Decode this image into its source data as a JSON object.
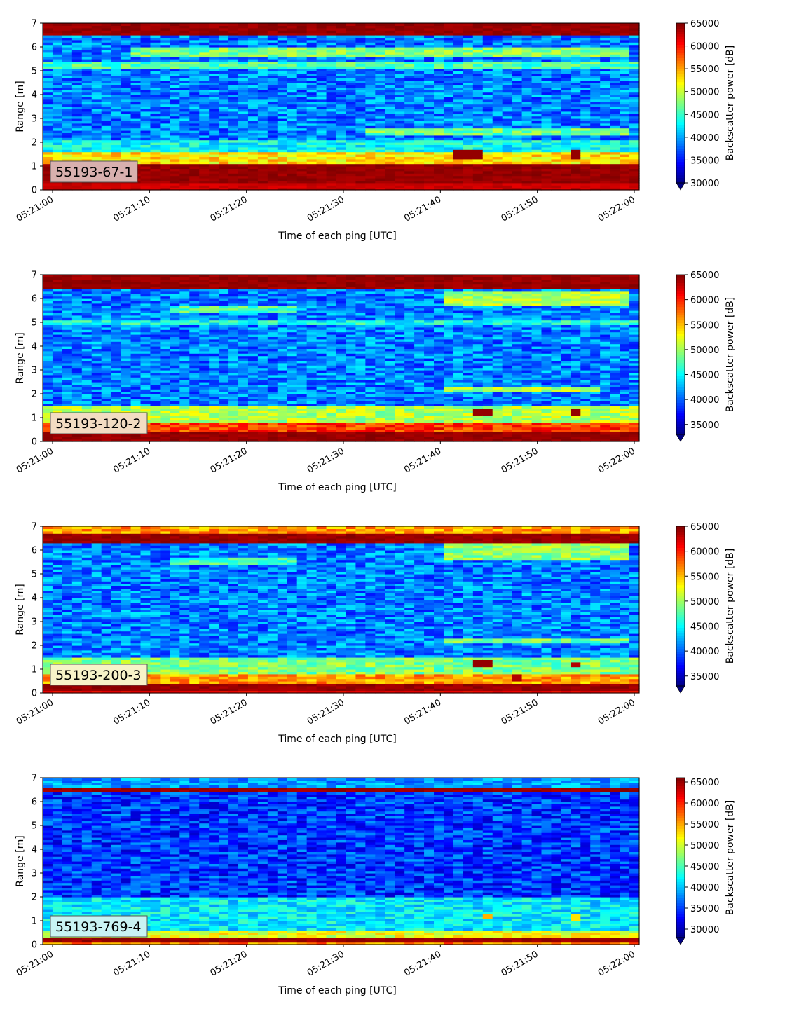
{
  "chart_data": [
    {
      "type": "heatmap",
      "label": "55193-67-1",
      "xlabel": "Time of each ping [UTC]",
      "ylabel": "Range [m]",
      "xticks": [
        "05:21:00",
        "05:21:10",
        "05:21:20",
        "05:21:30",
        "05:21:40",
        "05:21:50",
        "05:22:00"
      ],
      "yticks": [
        "0",
        "1",
        "2",
        "3",
        "4",
        "5",
        "6",
        "7"
      ],
      "ylim": [
        0,
        7
      ],
      "colorbar": {
        "label": "Backscatter power [dB]",
        "colormap": "jet",
        "min": 30000,
        "max": 65000,
        "ticks": [
          "30000",
          "35000",
          "40000",
          "45000",
          "50000",
          "55000",
          "60000",
          "65000"
        ]
      },
      "features": [
        {
          "range_m": [
            0.0,
            0.3
          ],
          "level": 0.95
        },
        {
          "range_m": [
            0.3,
            1.15
          ],
          "level": 1.0
        },
        {
          "range_m": [
            1.15,
            1.6
          ],
          "level": 0.65
        },
        {
          "range_m": [
            1.6,
            2.1
          ],
          "level": 0.38
        },
        {
          "range_m": [
            2.3,
            2.6
          ],
          "level": 0.48,
          "from_s": 32,
          "to_s": 60
        },
        {
          "range_m": [
            5.1,
            5.4
          ],
          "level": 0.45
        },
        {
          "range_m": [
            5.6,
            6.0
          ],
          "level": 0.5,
          "from_s": 8,
          "to_s": 60
        },
        {
          "range_m": [
            6.5,
            7.0
          ],
          "level": 1.0
        },
        {
          "patch_s": [
            41,
            44
          ],
          "range_m": [
            1.3,
            1.65
          ],
          "level": 0.98
        },
        {
          "patch_s": [
            53,
            54
          ],
          "range_m": [
            1.3,
            1.65
          ],
          "level": 0.98
        }
      ]
    },
    {
      "type": "heatmap",
      "label": "55193-120-2",
      "xlabel": "Time of each ping [UTC]",
      "ylabel": "Range [m]",
      "xticks": [
        "05:21:00",
        "05:21:10",
        "05:21:20",
        "05:21:30",
        "05:21:40",
        "05:21:50",
        "05:22:00"
      ],
      "yticks": [
        "0",
        "1",
        "2",
        "3",
        "4",
        "5",
        "6",
        "7"
      ],
      "ylim": [
        0,
        7
      ],
      "colorbar": {
        "label": "Backscatter power [dB]",
        "colormap": "jet",
        "min": 33000,
        "max": 65000,
        "ticks": [
          "35000",
          "40000",
          "45000",
          "50000",
          "55000",
          "60000",
          "65000"
        ]
      },
      "features": [
        {
          "range_m": [
            0.0,
            0.45
          ],
          "level": 1.0
        },
        {
          "range_m": [
            0.45,
            0.8
          ],
          "level": 0.82
        },
        {
          "range_m": [
            0.8,
            1.5
          ],
          "level": 0.55
        },
        {
          "range_m": [
            2.15,
            2.3
          ],
          "level": 0.55,
          "from_s": 40,
          "to_s": 56
        },
        {
          "range_m": [
            4.9,
            5.1
          ],
          "level": 0.4
        },
        {
          "range_m": [
            5.4,
            5.7
          ],
          "level": 0.45,
          "from_s": 12,
          "to_s": 25
        },
        {
          "range_m": [
            5.7,
            6.3
          ],
          "level": 0.55,
          "from_s": 40,
          "to_s": 60
        },
        {
          "range_m": [
            6.4,
            7.0
          ],
          "level": 1.0
        },
        {
          "patch_s": [
            43,
            45
          ],
          "range_m": [
            1.1,
            1.35
          ],
          "level": 0.98
        },
        {
          "patch_s": [
            53,
            54
          ],
          "range_m": [
            1.1,
            1.35
          ],
          "level": 0.98
        }
      ]
    },
    {
      "type": "heatmap",
      "label": "55193-200-3",
      "xlabel": "Time of each ping [UTC]",
      "ylabel": "Range [m]",
      "xticks": [
        "05:21:00",
        "05:21:10",
        "05:21:20",
        "05:21:30",
        "05:21:40",
        "05:21:50",
        "05:22:00"
      ],
      "yticks": [
        "0",
        "1",
        "2",
        "3",
        "4",
        "5",
        "6",
        "7"
      ],
      "ylim": [
        0,
        7
      ],
      "colorbar": {
        "label": "Backscatter power [dB]",
        "colormap": "jet",
        "min": 33000,
        "max": 65000,
        "ticks": [
          "35000",
          "40000",
          "45000",
          "50000",
          "55000",
          "60000",
          "65000"
        ]
      },
      "features": [
        {
          "range_m": [
            0.0,
            0.15
          ],
          "level": 0.9
        },
        {
          "range_m": [
            0.15,
            0.45
          ],
          "level": 1.0
        },
        {
          "range_m": [
            0.45,
            0.8
          ],
          "level": 0.72
        },
        {
          "range_m": [
            0.8,
            1.5
          ],
          "level": 0.5
        },
        {
          "range_m": [
            2.1,
            2.25
          ],
          "level": 0.5,
          "from_s": 40,
          "to_s": 60
        },
        {
          "range_m": [
            5.4,
            5.7
          ],
          "level": 0.45,
          "from_s": 12,
          "to_s": 25
        },
        {
          "range_m": [
            5.6,
            6.3
          ],
          "level": 0.52,
          "from_s": 40,
          "to_s": 60
        },
        {
          "range_m": [
            6.3,
            6.7
          ],
          "level": 1.0
        },
        {
          "range_m": [
            6.7,
            7.0
          ],
          "level": 0.72
        },
        {
          "patch_s": [
            43,
            45
          ],
          "range_m": [
            1.15,
            1.35
          ],
          "level": 0.98
        },
        {
          "patch_s": [
            53,
            54
          ],
          "range_m": [
            1.1,
            1.3
          ],
          "level": 0.95
        },
        {
          "patch_s": [
            47,
            48
          ],
          "range_m": [
            0.5,
            0.75
          ],
          "level": 0.95
        }
      ]
    },
    {
      "type": "heatmap",
      "label": "55193-769-4",
      "xlabel": "Time of each ping [UTC]",
      "ylabel": "Range [m]",
      "xticks": [
        "05:21:00",
        "05:21:10",
        "05:21:20",
        "05:21:30",
        "05:21:40",
        "05:21:50",
        "05:22:00"
      ],
      "yticks": [
        "0",
        "1",
        "2",
        "3",
        "4",
        "5",
        "6",
        "7"
      ],
      "ylim": [
        0,
        7
      ],
      "colorbar": {
        "label": "Backscatter power [dB]",
        "colormap": "jet",
        "min": 28000,
        "max": 66000,
        "ticks": [
          "30000",
          "35000",
          "40000",
          "45000",
          "50000",
          "55000",
          "60000",
          "65000"
        ]
      },
      "features": [
        {
          "range_m": [
            0.0,
            0.15
          ],
          "level": 0.75
        },
        {
          "range_m": [
            0.15,
            0.35
          ],
          "level": 1.0
        },
        {
          "range_m": [
            0.35,
            0.6
          ],
          "level": 0.6
        },
        {
          "range_m": [
            0.6,
            2.0
          ],
          "level": 0.36
        },
        {
          "range_m": [
            6.4,
            6.6
          ],
          "level": 1.0
        },
        {
          "range_m": [
            6.6,
            7.0
          ],
          "level": 0.28
        },
        {
          "patch_s": [
            44,
            45
          ],
          "range_m": [
            1.1,
            1.3
          ],
          "level": 0.7
        },
        {
          "patch_s": [
            53,
            54
          ],
          "range_m": [
            1.05,
            1.25
          ],
          "level": 0.65
        }
      ]
    }
  ]
}
